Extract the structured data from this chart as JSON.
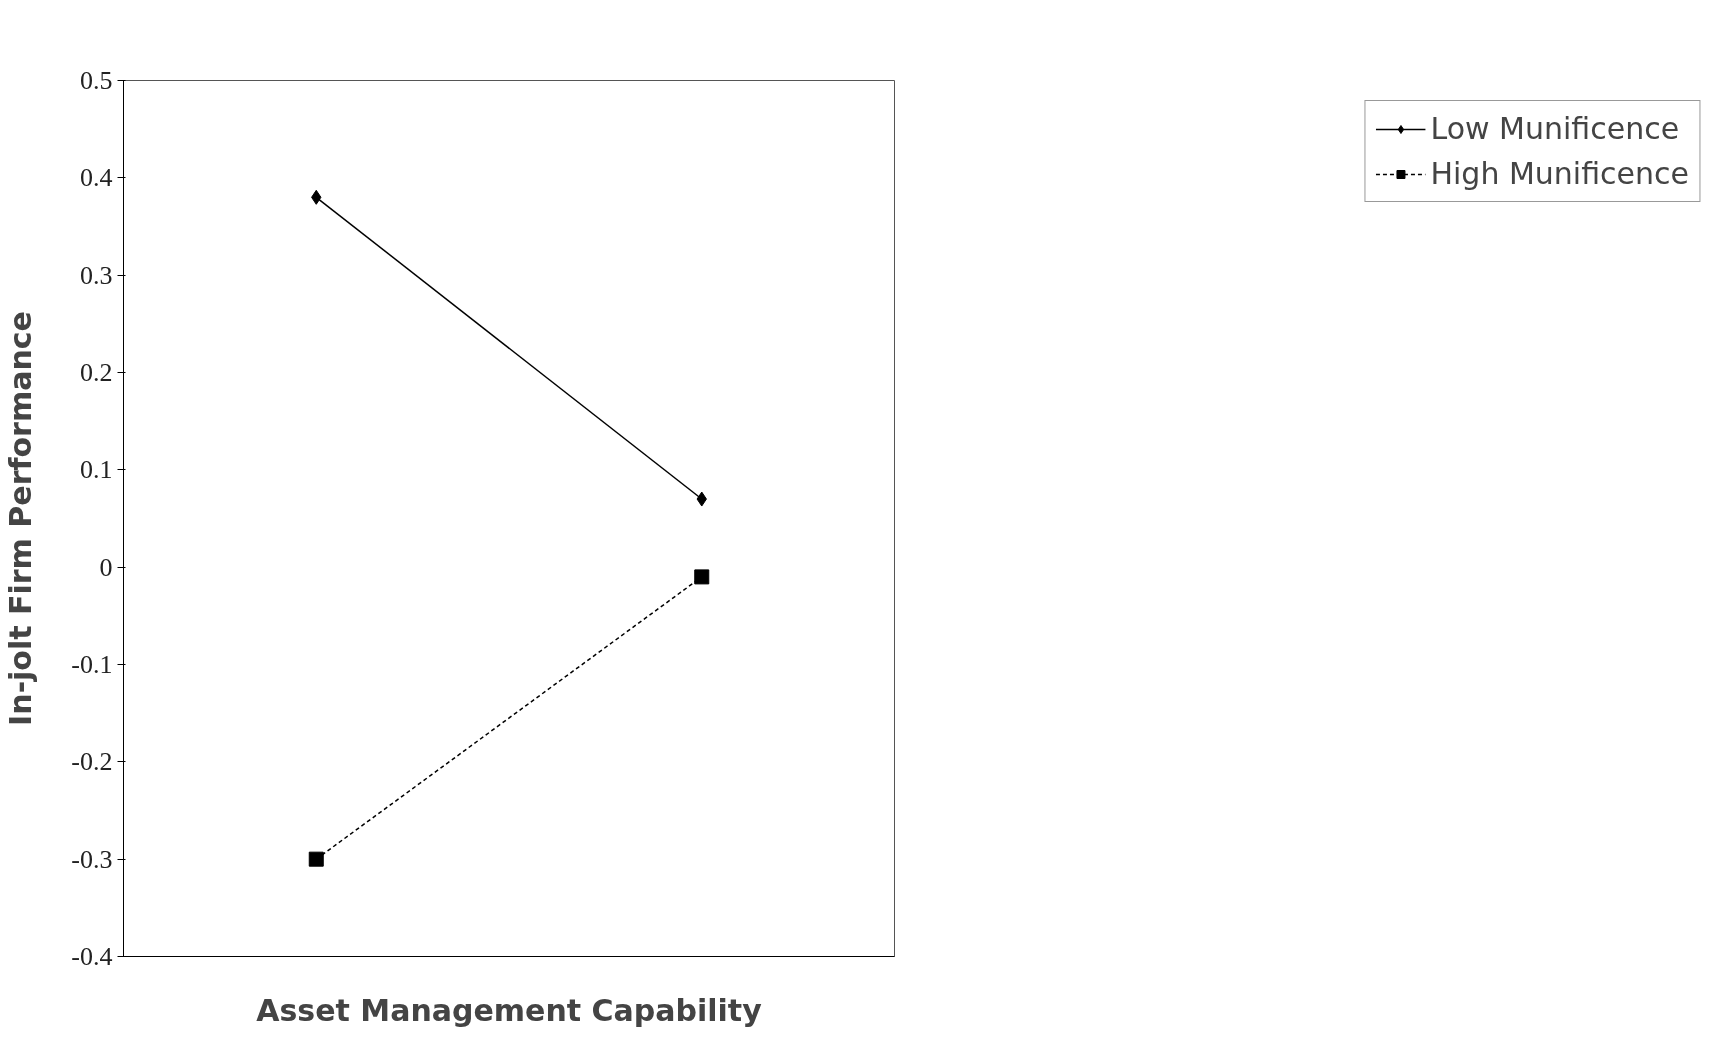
{
  "chart_data": {
    "type": "line",
    "xlabel": "Asset Management Capability",
    "ylabel": "In-jolt Firm Performance",
    "categories": [
      null,
      null
    ],
    "series": [
      {
        "name": "Low Munificence",
        "color": "#000000",
        "values": [
          0.38,
          0.07
        ],
        "marker": "diamond",
        "line_style": "solid"
      },
      {
        "name": "High Munificence",
        "color": "#000000",
        "values": [
          -0.3,
          -0.01
        ],
        "marker": "square",
        "line_style": "dashed"
      }
    ],
    "ylim": [
      -0.4,
      0.5
    ],
    "yticks": [
      -0.4,
      -0.3,
      -0.2,
      -0.1,
      0,
      0.1,
      0.2,
      0.3,
      0.4,
      0.5
    ],
    "tick_labels": "y",
    "grid": false,
    "legend": "right"
  }
}
